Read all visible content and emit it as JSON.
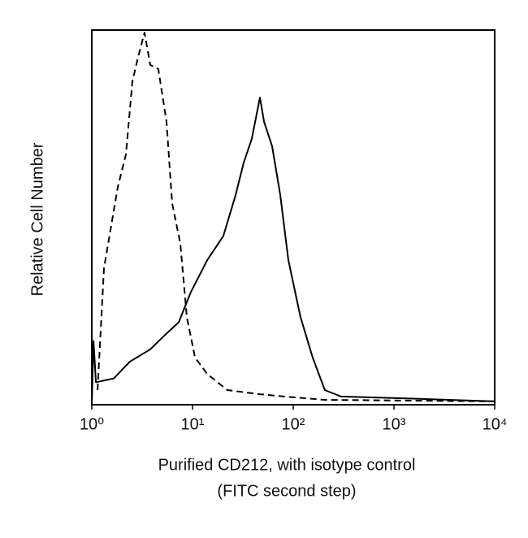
{
  "chart_data": {
    "type": "line",
    "ylabel": "Relative Cell Number",
    "xlabel": [
      "Purified CD212, with isotype control",
      "(FITC second step)"
    ],
    "xscale": "log",
    "xlim": [
      1,
      10000
    ],
    "ylim": [
      0,
      100
    ],
    "xticks": [
      {
        "value": 1,
        "label": "10⁰"
      },
      {
        "value": 10,
        "label": "10¹"
      },
      {
        "value": 100,
        "label": "10²"
      },
      {
        "value": 1000,
        "label": "10³"
      },
      {
        "value": 10000,
        "label": "10⁴"
      }
    ],
    "series": [
      {
        "color": "#000000",
        "dashed": true,
        "x": [
          1.14,
          1.32,
          1.5,
          1.81,
          2.18,
          2.53,
          2.88,
          3.34,
          3.81,
          4.58,
          5.52,
          6.28,
          7.57,
          8.78,
          10.6,
          14,
          22.2,
          46.7,
          81.5,
          206,
          10000
        ],
        "values": [
          3.9,
          36.4,
          45.1,
          58.1,
          66.8,
          86.3,
          92.8,
          99.3,
          90.7,
          89.6,
          75.5,
          53.8,
          43,
          23.4,
          12.6,
          8.2,
          3.9,
          2.8,
          2.2,
          1.3,
          0.9
        ]
      },
      {
        "color": "#000000",
        "dashed": false,
        "x": [
          1,
          1.04,
          1.1,
          1.65,
          2.39,
          3.81,
          5.52,
          7.29,
          9.6,
          14,
          20.2,
          26.8,
          32.2,
          38.8,
          46.7,
          51.3,
          61.7,
          74.3,
          89.5,
          118,
          156,
          206,
          299,
          1321,
          10000
        ],
        "values": [
          0,
          17,
          6,
          7,
          11.5,
          14.8,
          19,
          22,
          30,
          38.6,
          45,
          56,
          64.6,
          71,
          82,
          75.5,
          69,
          56,
          38.6,
          23.4,
          12.6,
          3.9,
          2.2,
          1.7,
          0.9
        ]
      }
    ]
  }
}
